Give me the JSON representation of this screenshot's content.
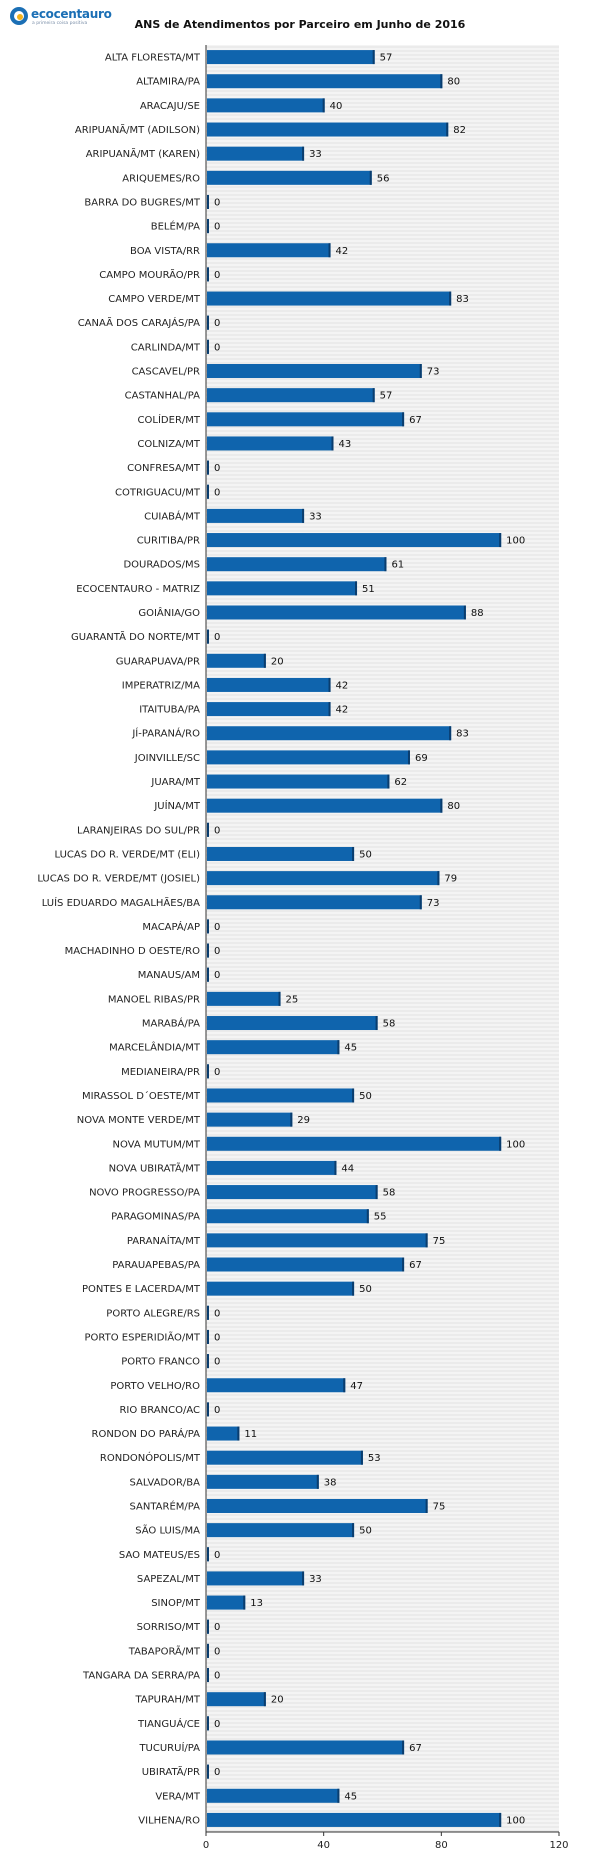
{
  "logo": {
    "name": "ecocentauro",
    "tagline": "a primeira coisa positiva"
  },
  "chart_data": {
    "type": "bar",
    "orientation": "horizontal",
    "title": "ANS de Atendimentos por Parceiro em Junho de 2016",
    "xlim": [
      0,
      120
    ],
    "xticks": [
      0,
      40,
      80,
      120
    ],
    "grid": true,
    "bar_color": "#0f64ad",
    "categories": [
      "ALTA FLORESTA/MT",
      "ALTAMIRA/PA",
      "ARACAJU/SE",
      "ARIPUANÃ/MT (ADILSON)",
      "ARIPUANÃ/MT (KAREN)",
      "ARIQUEMES/RO",
      "BARRA DO BUGRES/MT",
      "BELÉM/PA",
      "BOA VISTA/RR",
      "CAMPO MOURÃO/PR",
      "CAMPO VERDE/MT",
      "CANAÃ DOS CARAJÁS/PA",
      "CARLINDA/MT",
      "CASCAVEL/PR",
      "CASTANHAL/PA",
      "COLÍDER/MT",
      "COLNIZA/MT",
      "CONFRESA/MT",
      "COTRIGUACU/MT",
      "CUIABÁ/MT",
      "CURITIBA/PR",
      "DOURADOS/MS",
      "ECOCENTAURO - MATRIZ",
      "GOIÂNIA/GO",
      "GUARANTÃ DO NORTE/MT",
      "GUARAPUAVA/PR",
      "IMPERATRIZ/MA",
      "ITAITUBA/PA",
      "JÍ-PARANÁ/RO",
      "JOINVILLE/SC",
      "JUARA/MT",
      "JUÍNA/MT",
      "LARANJEIRAS DO SUL/PR",
      "LUCAS DO R. VERDE/MT (ELI)",
      "LUCAS DO R. VERDE/MT (JOSIEL)",
      "LUÍS EDUARDO MAGALHÃES/BA",
      "MACAPÁ/AP",
      "MACHADINHO D OESTE/RO",
      "MANAUS/AM",
      "MANOEL RIBAS/PR",
      "MARABÁ/PA",
      "MARCELÂNDIA/MT",
      "MEDIANEIRA/PR",
      "MIRASSOL D´OESTE/MT",
      "NOVA MONTE VERDE/MT",
      "NOVA MUTUM/MT",
      "NOVA UBIRATÃ/MT",
      "NOVO PROGRESSO/PA",
      "PARAGOMINAS/PA",
      "PARANAÍTA/MT",
      "PARAUAPEBAS/PA",
      "PONTES E LACERDA/MT",
      "PORTO ALEGRE/RS",
      "PORTO ESPERIDIÃO/MT",
      "PORTO FRANCO",
      "PORTO VELHO/RO",
      "RIO BRANCO/AC",
      "RONDON DO PARÁ/PA",
      "RONDONÓPOLIS/MT",
      "SALVADOR/BA",
      "SANTARÉM/PA",
      "SÃO LUIS/MA",
      "SAO MATEUS/ES",
      "SAPEZAL/MT",
      "SINOP/MT",
      "SORRISO/MT",
      "TABAPORÃ/MT",
      "TANGARA DA SERRA/PA",
      "TAPURAH/MT",
      "TIANGUÁ/CE",
      "TUCURUÍ/PA",
      "UBIRATÃ/PR",
      "VERA/MT",
      "VILHENA/RO"
    ],
    "values": [
      57,
      80,
      40,
      82,
      33,
      56,
      0,
      0,
      42,
      0,
      83,
      0,
      0,
      73,
      57,
      67,
      43,
      0,
      0,
      33,
      100,
      61,
      51,
      88,
      0,
      20,
      42,
      42,
      83,
      69,
      62,
      80,
      0,
      50,
      79,
      73,
      0,
      0,
      0,
      25,
      58,
      45,
      0,
      50,
      29,
      100,
      44,
      58,
      55,
      75,
      67,
      50,
      0,
      0,
      0,
      47,
      0,
      11,
      53,
      38,
      75,
      50,
      0,
      33,
      13,
      0,
      0,
      0,
      20,
      0,
      67,
      0,
      45,
      100
    ]
  }
}
